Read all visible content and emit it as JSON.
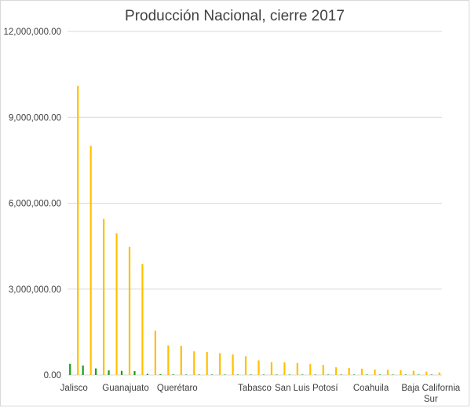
{
  "chart_data": {
    "type": "bar",
    "title": "Producción Nacional, cierre 2017",
    "xlabel": "",
    "ylabel": "",
    "ylim": [
      0,
      12000000
    ],
    "yticks": [
      0,
      3000000,
      6000000,
      9000000,
      12000000
    ],
    "ytick_labels": [
      "0.00",
      "3,000,000.00",
      "6,000,000.00",
      "9,000,000.00",
      "12,000,000.00"
    ],
    "grid": true,
    "legend": "none",
    "categories": [
      "Jalisco",
      "",
      "",
      "",
      "Guanajuato",
      "",
      "",
      "",
      "Querétaro",
      "",
      "",
      "",
      "",
      "",
      "Tabasco",
      "",
      "",
      "",
      "San Luis Potosí",
      "",
      "",
      "",
      "",
      "Coahuila",
      "",
      "",
      "",
      "",
      "Baja California Sur"
    ],
    "visible_category_labels": [
      "Jalisco",
      "Guanajuato",
      "Querétaro",
      "Tabasco",
      "San Luis Potosí",
      "Coahuila",
      "Baja California Sur"
    ],
    "series": [
      {
        "color": "#1a9e1a",
        "values": [
          390000,
          330000,
          230000,
          160000,
          145000,
          135000,
          40000,
          25000,
          20000,
          15000,
          12000,
          10000,
          8000,
          6000,
          5000,
          4000,
          3000,
          3000,
          2000,
          2000,
          2000,
          1000,
          1000,
          1000,
          1000,
          1000,
          1000,
          500,
          500
        ]
      },
      {
        "color": "#ffc000",
        "values": [
          10100000,
          8000000,
          5450000,
          4950000,
          4480000,
          3870000,
          1550000,
          1030000,
          1020000,
          830000,
          800000,
          760000,
          720000,
          650000,
          510000,
          450000,
          440000,
          420000,
          380000,
          350000,
          270000,
          250000,
          220000,
          190000,
          180000,
          170000,
          150000,
          120000,
          90000
        ]
      }
    ]
  }
}
